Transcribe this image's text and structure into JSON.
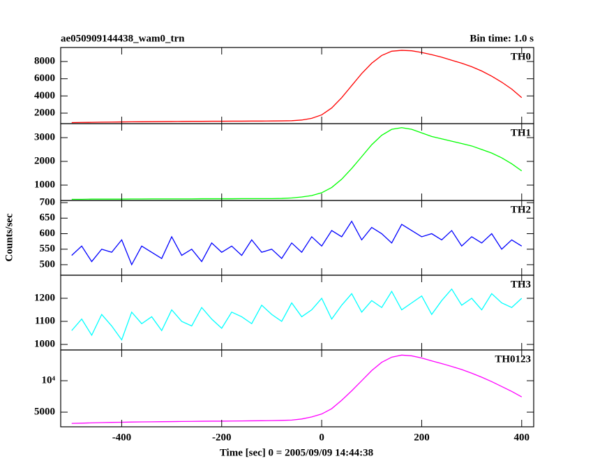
{
  "title": "ae050909144438_wam0_trn",
  "subtitle": "Bin time: 1.0 s",
  "ylabel": "Counts/sec",
  "xlabel": "Time [sec] 0 = 2005/09/09 14:44:38",
  "chart_data": [
    {
      "type": "line",
      "x": [
        -500,
        -480,
        -460,
        -440,
        -420,
        -400,
        -380,
        -360,
        -340,
        -320,
        -300,
        -280,
        -260,
        -240,
        -220,
        -200,
        -180,
        -160,
        -140,
        -120,
        -100,
        -80,
        -60,
        -40,
        -20,
        0,
        20,
        40,
        60,
        80,
        100,
        120,
        140,
        160,
        180,
        200,
        220,
        240,
        260,
        280,
        300,
        320,
        340,
        360,
        380,
        400
      ],
      "series": [
        {
          "name": "TH0",
          "color": "#ff0000",
          "values": [
            900,
            920,
            930,
            950,
            960,
            980,
            990,
            1000,
            1010,
            1020,
            1030,
            1040,
            1050,
            1050,
            1060,
            1060,
            1070,
            1070,
            1080,
            1080,
            1090,
            1100,
            1120,
            1200,
            1400,
            1800,
            2600,
            3800,
            5200,
            6600,
            7800,
            8700,
            9200,
            9300,
            9250,
            9050,
            8800,
            8500,
            8150,
            7800,
            7400,
            6900,
            6300,
            5600,
            4800,
            3800
          ]
        }
      ],
      "xlim": [
        -522,
        424
      ],
      "xticks": [
        -400,
        -200,
        0,
        200,
        400
      ],
      "ylim": [
        780,
        9630
      ],
      "yticks": [
        2000,
        4000,
        6000,
        8000
      ],
      "log_scale": false
    },
    {
      "type": "line",
      "x": [
        -500,
        -480,
        -460,
        -440,
        -420,
        -400,
        -380,
        -360,
        -340,
        -320,
        -300,
        -280,
        -260,
        -240,
        -220,
        -200,
        -180,
        -160,
        -140,
        -120,
        -100,
        -80,
        -60,
        -40,
        -20,
        0,
        20,
        40,
        60,
        80,
        100,
        120,
        140,
        160,
        180,
        200,
        220,
        240,
        260,
        280,
        300,
        320,
        340,
        360,
        380,
        400
      ],
      "series": [
        {
          "name": "TH1",
          "color": "#00ff00",
          "values": [
            400,
            400,
            410,
            410,
            410,
            410,
            415,
            415,
            420,
            420,
            420,
            420,
            420,
            425,
            425,
            425,
            425,
            430,
            430,
            430,
            430,
            440,
            460,
            500,
            560,
            680,
            900,
            1250,
            1700,
            2200,
            2700,
            3100,
            3350,
            3420,
            3350,
            3200,
            3050,
            2950,
            2850,
            2750,
            2650,
            2500,
            2350,
            2150,
            1900,
            1600
          ]
        }
      ],
      "xlim": [
        -522,
        424
      ],
      "xticks": [
        -400,
        -200,
        0,
        200,
        400
      ],
      "ylim": [
        353,
        3590
      ],
      "yticks": [
        1000,
        2000,
        3000
      ],
      "log_scale": false
    },
    {
      "type": "line",
      "x": [
        -500,
        -480,
        -460,
        -440,
        -420,
        -400,
        -380,
        -360,
        -340,
        -320,
        -300,
        -280,
        -260,
        -240,
        -220,
        -200,
        -180,
        -160,
        -140,
        -120,
        -100,
        -80,
        -60,
        -40,
        -20,
        0,
        20,
        40,
        60,
        80,
        100,
        120,
        140,
        160,
        180,
        200,
        220,
        240,
        260,
        280,
        300,
        320,
        340,
        360,
        380,
        400
      ],
      "series": [
        {
          "name": "TH2",
          "color": "#0000ff",
          "values": [
            530,
            560,
            510,
            550,
            540,
            580,
            500,
            560,
            540,
            520,
            590,
            530,
            550,
            510,
            570,
            540,
            560,
            530,
            580,
            540,
            550,
            520,
            570,
            540,
            590,
            560,
            610,
            590,
            640,
            580,
            620,
            600,
            570,
            630,
            610,
            590,
            600,
            580,
            610,
            560,
            590,
            570,
            600,
            550,
            580,
            560
          ]
        }
      ],
      "xlim": [
        -522,
        424
      ],
      "xticks": [
        -400,
        -200,
        0,
        200,
        400
      ],
      "ylim": [
        466,
        707
      ],
      "yticks": [
        500,
        550,
        600,
        650,
        700
      ],
      "log_scale": false
    },
    {
      "type": "line",
      "x": [
        -500,
        -480,
        -460,
        -440,
        -420,
        -400,
        -380,
        -360,
        -340,
        -320,
        -300,
        -280,
        -260,
        -240,
        -220,
        -200,
        -180,
        -160,
        -140,
        -120,
        -100,
        -80,
        -60,
        -40,
        -20,
        0,
        20,
        40,
        60,
        80,
        100,
        120,
        140,
        160,
        180,
        200,
        220,
        240,
        260,
        280,
        300,
        320,
        340,
        360,
        380,
        400
      ],
      "series": [
        {
          "name": "TH3",
          "color": "#00ffff",
          "values": [
            1060,
            1110,
            1040,
            1130,
            1080,
            1020,
            1140,
            1090,
            1120,
            1060,
            1150,
            1100,
            1080,
            1160,
            1110,
            1070,
            1140,
            1120,
            1090,
            1170,
            1130,
            1100,
            1180,
            1120,
            1150,
            1200,
            1110,
            1170,
            1220,
            1140,
            1190,
            1160,
            1230,
            1150,
            1180,
            1210,
            1130,
            1190,
            1240,
            1170,
            1200,
            1150,
            1220,
            1180,
            1160,
            1200
          ]
        }
      ],
      "xlim": [
        -522,
        424
      ],
      "xticks": [
        -400,
        -200,
        0,
        200,
        400
      ],
      "ylim": [
        976,
        1300
      ],
      "yticks": [
        1000,
        1100,
        1200
      ],
      "log_scale": false
    },
    {
      "type": "line",
      "x": [
        -500,
        -480,
        -460,
        -440,
        -420,
        -400,
        -380,
        -360,
        -340,
        -320,
        -300,
        -280,
        -260,
        -240,
        -220,
        -200,
        -180,
        -160,
        -140,
        -120,
        -100,
        -80,
        -60,
        -40,
        -20,
        0,
        20,
        40,
        60,
        80,
        100,
        120,
        140,
        160,
        180,
        200,
        220,
        240,
        260,
        280,
        300,
        320,
        340,
        360,
        380,
        400
      ],
      "series": [
        {
          "name": "TH0123",
          "color": "#ff00ff",
          "values": [
            3900,
            3920,
            3950,
            3970,
            3990,
            4000,
            4020,
            4030,
            4040,
            4050,
            4060,
            4070,
            4080,
            4090,
            4100,
            4100,
            4110,
            4120,
            4130,
            4140,
            4150,
            4170,
            4200,
            4300,
            4500,
            4800,
            5400,
            6500,
            8000,
            10000,
            12500,
            15000,
            16800,
            17600,
            17300,
            16500,
            15500,
            14600,
            13700,
            12800,
            11800,
            10800,
            9800,
            8800,
            7900,
            7000
          ]
        }
      ],
      "xlim": [
        -522,
        424
      ],
      "xticks": [
        -400,
        -200,
        0,
        200,
        400
      ],
      "ylim": [
        3620,
        19700
      ],
      "yticks": [
        5000,
        {
          "value": 10000,
          "label": "10⁴"
        }
      ],
      "log_scale": true
    }
  ]
}
